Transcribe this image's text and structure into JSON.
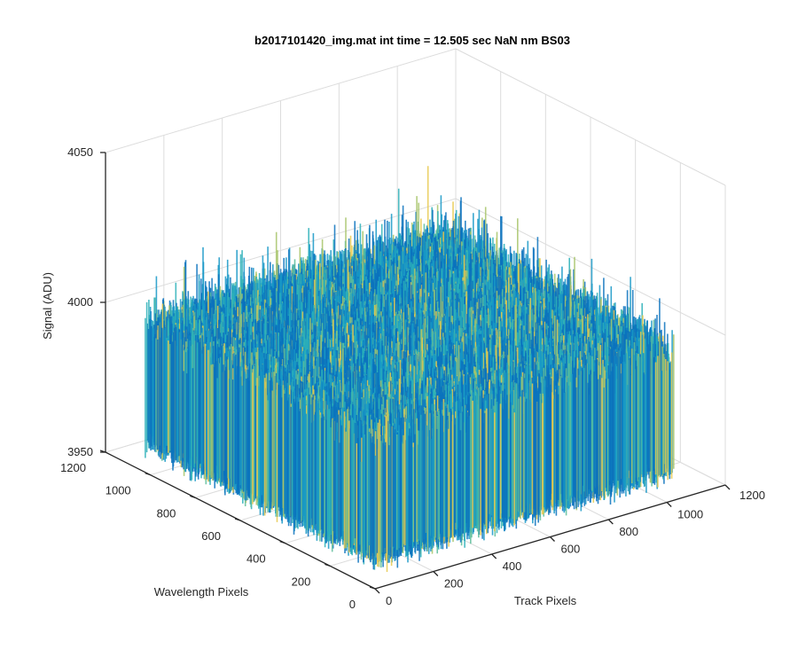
{
  "chart_data": {
    "type": "surface",
    "title": "b2017101420_img.mat int time = 12.505 sec  NaN nm BS03",
    "xlabel": "Track Pixels",
    "ylabel": "Wavelength Pixels",
    "zlabel": "Signal (ADU)",
    "xlim": [
      0,
      1200
    ],
    "ylim": [
      0,
      1200
    ],
    "zlim": [
      3950,
      4050
    ],
    "xticks": [
      "0",
      "200",
      "400",
      "600",
      "800",
      "1000",
      "1200"
    ],
    "yticks": [
      "0",
      "200",
      "400",
      "600",
      "800",
      "1000",
      "1200"
    ],
    "zticks": [
      "3950",
      "4000",
      "4050"
    ],
    "data_extent": {
      "x": [
        1,
        1024
      ],
      "y": [
        1,
        1024
      ]
    },
    "signal_mean": 3980,
    "signal_noise_std": 8,
    "grid": true,
    "colormap": [
      "#0a72bd",
      "#1698c7",
      "#2bb0b8",
      "#5dbd9a",
      "#a7c46a",
      "#e7c94e"
    ]
  }
}
